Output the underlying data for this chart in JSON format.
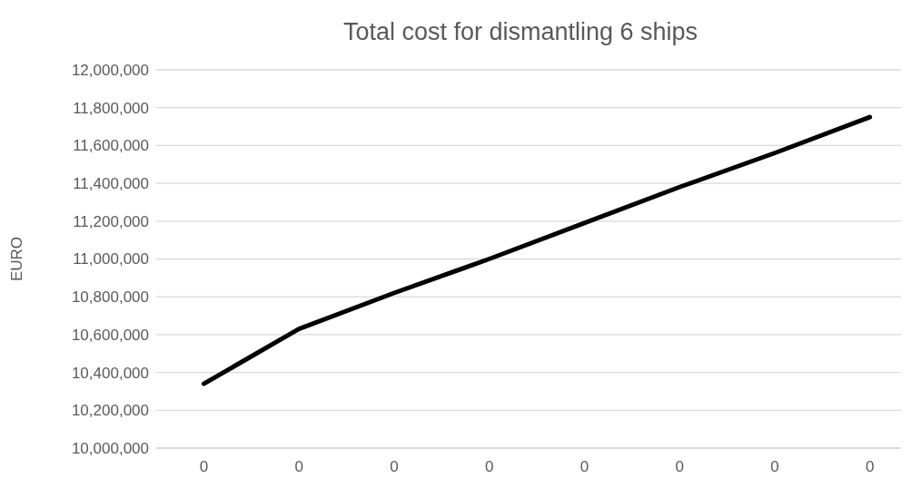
{
  "chart_data": {
    "type": "line",
    "title": "Total cost for dismantling 6 ships",
    "ylabel": "EURO",
    "categories": [
      "0",
      "0",
      "0",
      "0",
      "0",
      "0",
      "0",
      "0"
    ],
    "series": [
      {
        "color": "#000000",
        "values": [
          10340000,
          10630000,
          10820000,
          11000000,
          11190000,
          11380000,
          11560000,
          11750000
        ]
      }
    ],
    "ylim": [
      10000000,
      12000000
    ],
    "yticks": [
      {
        "value": 10000000,
        "label": "10,000,000"
      },
      {
        "value": 10200000,
        "label": "10,200,000"
      },
      {
        "value": 10400000,
        "label": "10,400,000"
      },
      {
        "value": 10600000,
        "label": "10,600,000"
      },
      {
        "value": 10800000,
        "label": "10,800,000"
      },
      {
        "value": 11000000,
        "label": "11,000,000"
      },
      {
        "value": 11200000,
        "label": "11,200,000"
      },
      {
        "value": 11400000,
        "label": "11,400,000"
      },
      {
        "value": 11600000,
        "label": "11,600,000"
      },
      {
        "value": 11800000,
        "label": "11,800,000"
      },
      {
        "value": 12000000,
        "label": "12,000,000"
      }
    ],
    "grid": "y",
    "marker": "none",
    "line_style": "solid"
  }
}
